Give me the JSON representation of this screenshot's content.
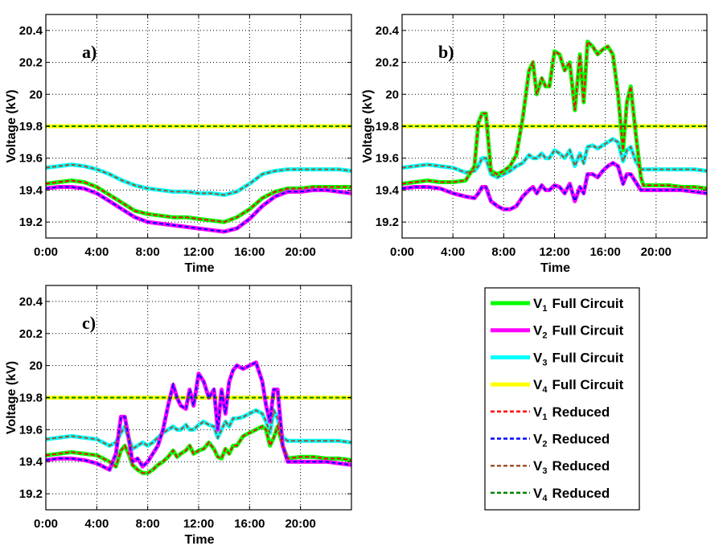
{
  "chart_data": [
    {
      "type": "line",
      "panel_label": "a)",
      "xlabel": "Time",
      "ylabel": "Voltage (kV)",
      "x_tick_labels": [
        "0:00",
        "4:00",
        "8:00",
        "12:00",
        "16:00",
        "20:00"
      ],
      "y_tick_labels": [
        "19.2",
        "19.4",
        "19.6",
        "19.8",
        "20",
        "20.2",
        "20.4"
      ],
      "xlim": [
        0,
        24
      ],
      "ylim": [
        19.1,
        20.5
      ],
      "grid": true,
      "x": [
        0,
        1,
        2,
        3,
        4,
        5,
        6,
        7,
        8,
        9,
        10,
        11,
        12,
        13,
        14,
        15,
        16,
        17,
        18,
        19,
        20,
        21,
        22,
        23,
        24
      ],
      "series": [
        {
          "name": "V1 Full Circuit",
          "values": [
            19.44,
            19.45,
            19.46,
            19.45,
            19.42,
            19.37,
            19.32,
            19.27,
            19.25,
            19.24,
            19.23,
            19.23,
            19.22,
            19.21,
            19.2,
            19.23,
            19.28,
            19.35,
            19.39,
            19.41,
            19.41,
            19.42,
            19.42,
            19.42,
            19.42
          ]
        },
        {
          "name": "V2 Full Circuit",
          "values": [
            19.41,
            19.42,
            19.42,
            19.41,
            19.38,
            19.33,
            19.28,
            19.23,
            19.2,
            19.19,
            19.18,
            19.17,
            19.16,
            19.15,
            19.14,
            19.16,
            19.22,
            19.3,
            19.36,
            19.39,
            19.39,
            19.4,
            19.4,
            19.39,
            19.38
          ]
        },
        {
          "name": "V3 Full Circuit",
          "values": [
            19.54,
            19.55,
            19.56,
            19.55,
            19.53,
            19.5,
            19.46,
            19.43,
            19.41,
            19.4,
            19.39,
            19.39,
            19.38,
            19.38,
            19.37,
            19.39,
            19.44,
            19.5,
            19.52,
            19.53,
            19.53,
            19.53,
            19.53,
            19.53,
            19.52
          ]
        },
        {
          "name": "V4 Full Circuit",
          "values": [
            19.8,
            19.8,
            19.8,
            19.8,
            19.8,
            19.8,
            19.8,
            19.8,
            19.8,
            19.8,
            19.8,
            19.8,
            19.8,
            19.8,
            19.8,
            19.8,
            19.8,
            19.8,
            19.8,
            19.8,
            19.8,
            19.8,
            19.8,
            19.8,
            19.8
          ]
        }
      ]
    },
    {
      "type": "line",
      "panel_label": "b)",
      "xlabel": "Time",
      "ylabel": "Voltage (kV)",
      "x_tick_labels": [
        "0:00",
        "4:00",
        "8:00",
        "12:00",
        "16:00",
        "20:00"
      ],
      "y_tick_labels": [
        "19.2",
        "19.4",
        "19.6",
        "19.8",
        "20",
        "20.2",
        "20.4"
      ],
      "xlim": [
        0,
        24
      ],
      "ylim": [
        19.1,
        20.5
      ],
      "grid": true,
      "x": [
        0,
        1,
        2,
        3,
        4,
        5,
        5.7,
        6,
        6.3,
        6.6,
        7,
        7.5,
        8,
        8.5,
        9,
        9.5,
        10,
        10.3,
        10.6,
        11,
        11.3,
        11.6,
        12,
        12.4,
        12.8,
        13.2,
        13.6,
        14,
        14.3,
        14.6,
        15,
        15.4,
        15.8,
        16.2,
        16.6,
        17,
        17.4,
        17.7,
        18,
        18.4,
        18.8,
        19,
        20,
        21,
        22,
        23,
        24
      ],
      "series": [
        {
          "name": "V1 Full Circuit",
          "values": [
            19.44,
            19.45,
            19.46,
            19.45,
            19.45,
            19.46,
            19.55,
            19.82,
            19.88,
            19.88,
            19.52,
            19.5,
            19.52,
            19.55,
            19.62,
            19.85,
            20.15,
            20.2,
            20.0,
            20.1,
            20.05,
            20.05,
            20.27,
            20.25,
            20.15,
            20.2,
            19.9,
            20.25,
            19.95,
            20.33,
            20.3,
            20.25,
            20.28,
            20.3,
            20.25,
            20.0,
            19.65,
            19.95,
            20.05,
            19.75,
            19.48,
            19.43,
            19.43,
            19.43,
            19.42,
            19.42,
            19.41
          ]
        },
        {
          "name": "V2 Full Circuit",
          "values": [
            19.41,
            19.42,
            19.42,
            19.41,
            19.38,
            19.36,
            19.35,
            19.38,
            19.42,
            19.42,
            19.33,
            19.3,
            19.28,
            19.28,
            19.3,
            19.36,
            19.4,
            19.42,
            19.38,
            19.43,
            19.4,
            19.4,
            19.43,
            19.42,
            19.38,
            19.44,
            19.33,
            19.42,
            19.38,
            19.5,
            19.5,
            19.48,
            19.52,
            19.55,
            19.57,
            19.55,
            19.44,
            19.5,
            19.5,
            19.45,
            19.4,
            19.4,
            19.4,
            19.4,
            19.4,
            19.39,
            19.38
          ]
        },
        {
          "name": "V3 Full Circuit",
          "values": [
            19.54,
            19.55,
            19.56,
            19.55,
            19.54,
            19.51,
            19.52,
            19.55,
            19.6,
            19.6,
            19.5,
            19.48,
            19.5,
            19.52,
            19.55,
            19.57,
            19.62,
            19.6,
            19.6,
            19.63,
            19.6,
            19.6,
            19.65,
            19.63,
            19.6,
            19.65,
            19.55,
            19.63,
            19.57,
            19.67,
            19.68,
            19.66,
            19.68,
            19.7,
            19.72,
            19.7,
            19.58,
            19.65,
            19.67,
            19.58,
            19.53,
            19.53,
            19.53,
            19.53,
            19.53,
            19.53,
            19.52
          ]
        },
        {
          "name": "V4 Full Circuit",
          "values": [
            19.8,
            19.8,
            19.8,
            19.8,
            19.8,
            19.8,
            19.8,
            19.8,
            19.8,
            19.8,
            19.8,
            19.8,
            19.8,
            19.8,
            19.8,
            19.8,
            19.8,
            19.8,
            19.8,
            19.8,
            19.8,
            19.8,
            19.8,
            19.8,
            19.8,
            19.8,
            19.8,
            19.8,
            19.8,
            19.8,
            19.8,
            19.8,
            19.8,
            19.8,
            19.8,
            19.8,
            19.8,
            19.8,
            19.8,
            19.8,
            19.8,
            19.8,
            19.8,
            19.8,
            19.8,
            19.8,
            19.8
          ]
        }
      ]
    },
    {
      "type": "line",
      "panel_label": "c)",
      "xlabel": "Time",
      "ylabel": "Voltage (kV)",
      "x_tick_labels": [
        "0:00",
        "4:00",
        "8:00",
        "12:00",
        "16:00",
        "20:00"
      ],
      "y_tick_labels": [
        "19.2",
        "19.4",
        "19.6",
        "19.8",
        "20",
        "20.2",
        "20.4"
      ],
      "xlim": [
        0,
        24
      ],
      "ylim": [
        19.1,
        20.5
      ],
      "grid": true,
      "x": [
        0,
        1,
        2,
        3,
        4,
        5,
        5.5,
        5.9,
        6.2,
        6.5,
        6.8,
        7.2,
        7.6,
        8,
        8.4,
        8.8,
        9.2,
        9.6,
        10,
        10.3,
        10.6,
        11,
        11.3,
        11.6,
        12,
        12.4,
        12.8,
        13.2,
        13.5,
        13.8,
        14.1,
        14.4,
        14.7,
        15,
        15.5,
        16,
        16.5,
        17,
        17.3,
        17.6,
        17.9,
        18.2,
        18.6,
        19,
        20,
        21,
        22,
        23,
        24
      ],
      "series": [
        {
          "name": "V1 Full Circuit",
          "values": [
            19.44,
            19.45,
            19.46,
            19.45,
            19.44,
            19.4,
            19.37,
            19.47,
            19.5,
            19.45,
            19.38,
            19.35,
            19.33,
            19.33,
            19.35,
            19.38,
            19.4,
            19.43,
            19.47,
            19.43,
            19.45,
            19.47,
            19.5,
            19.45,
            19.47,
            19.48,
            19.52,
            19.48,
            19.43,
            19.42,
            19.48,
            19.45,
            19.5,
            19.5,
            19.56,
            19.58,
            19.6,
            19.62,
            19.6,
            19.5,
            19.55,
            19.62,
            19.5,
            19.42,
            19.43,
            19.43,
            19.42,
            19.42,
            19.41
          ]
        },
        {
          "name": "V2 Full Circuit",
          "values": [
            19.41,
            19.42,
            19.42,
            19.41,
            19.39,
            19.35,
            19.45,
            19.68,
            19.68,
            19.55,
            19.4,
            19.42,
            19.37,
            19.4,
            19.45,
            19.5,
            19.6,
            19.75,
            19.88,
            19.8,
            19.75,
            19.73,
            19.85,
            19.75,
            19.95,
            19.9,
            19.8,
            19.85,
            19.6,
            19.85,
            19.7,
            19.9,
            19.97,
            20.0,
            19.98,
            20.0,
            20.02,
            19.9,
            19.75,
            19.65,
            19.85,
            19.85,
            19.5,
            19.4,
            19.4,
            19.4,
            19.4,
            19.39,
            19.38
          ]
        },
        {
          "name": "V3 Full Circuit",
          "values": [
            19.54,
            19.55,
            19.56,
            19.55,
            19.54,
            19.5,
            19.52,
            19.58,
            19.62,
            19.55,
            19.48,
            19.5,
            19.52,
            19.5,
            19.52,
            19.55,
            19.58,
            19.6,
            19.62,
            19.6,
            19.6,
            19.63,
            19.6,
            19.6,
            19.63,
            19.65,
            19.63,
            19.62,
            19.55,
            19.6,
            19.65,
            19.62,
            19.67,
            19.67,
            19.68,
            19.7,
            19.72,
            19.7,
            19.65,
            19.58,
            19.72,
            19.67,
            19.55,
            19.53,
            19.53,
            19.53,
            19.53,
            19.53,
            19.52
          ]
        },
        {
          "name": "V4 Full Circuit",
          "values": [
            19.8,
            19.8,
            19.8,
            19.8,
            19.8,
            19.8,
            19.8,
            19.8,
            19.8,
            19.8,
            19.8,
            19.8,
            19.8,
            19.8,
            19.8,
            19.8,
            19.8,
            19.8,
            19.8,
            19.8,
            19.8,
            19.8,
            19.8,
            19.8,
            19.8,
            19.8,
            19.8,
            19.8,
            19.8,
            19.8,
            19.8,
            19.8,
            19.8,
            19.8,
            19.8,
            19.8,
            19.8,
            19.8,
            19.8,
            19.8,
            19.8,
            19.8,
            19.8,
            19.8,
            19.8,
            19.8,
            19.8,
            19.8,
            19.8
          ]
        }
      ]
    }
  ],
  "legend": {
    "entries": [
      {
        "symbol": "V",
        "sub": "1",
        "text": "Full Circuit",
        "color": "#00ff00",
        "style": "solid"
      },
      {
        "symbol": "V",
        "sub": "2",
        "text": "Full Circuit",
        "color": "#ff00ff",
        "style": "solid"
      },
      {
        "symbol": "V",
        "sub": "3",
        "text": "Full Circuit",
        "color": "#00ffff",
        "style": "solid"
      },
      {
        "symbol": "V",
        "sub": "4",
        "text": "Full Circuit",
        "color": "#ffff00",
        "style": "solid"
      },
      {
        "symbol": "V",
        "sub": "1",
        "text": "Reduced",
        "color": "#ff0000",
        "style": "dashed"
      },
      {
        "symbol": "V",
        "sub": "2",
        "text": "Reduced",
        "color": "#0000ff",
        "style": "dashed"
      },
      {
        "symbol": "V",
        "sub": "3",
        "text": "Reduced",
        "color": "#a0522d",
        "style": "dashed"
      },
      {
        "symbol": "V",
        "sub": "4",
        "text": "Reduced",
        "color": "#008000",
        "style": "dashed"
      }
    ]
  },
  "colors": {
    "full": [
      "#00ff00",
      "#ff00ff",
      "#00ffff",
      "#ffff00"
    ],
    "reduced": [
      "#ff0000",
      "#0000ff",
      "#a0522d",
      "#008000"
    ]
  }
}
